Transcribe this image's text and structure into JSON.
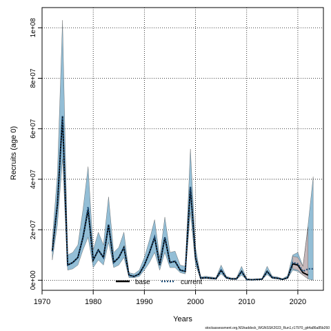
{
  "chart_data": {
    "type": "line",
    "xlabel": "Years",
    "ylabel": "Recruits (age 0)",
    "xlim": [
      1970,
      2025
    ],
    "ylim": [
      -4000000,
      108000000
    ],
    "x_ticks": [
      1970,
      1980,
      1990,
      2000,
      2010,
      2020
    ],
    "y_ticks": [
      0,
      20000000,
      40000000,
      60000000,
      80000000,
      100000000
    ],
    "x_tick_labels": [
      "1970",
      "1980",
      "1990",
      "2000",
      "2010",
      "2020"
    ],
    "y_tick_labels": [
      "0e+00",
      "2e+07",
      "4e+07",
      "6e+07",
      "8e+07",
      "1e+08"
    ],
    "grid": true,
    "legend_position": "bottom-center",
    "years": [
      1972,
      1973,
      1974,
      1975,
      1976,
      1977,
      1978,
      1979,
      1980,
      1981,
      1982,
      1983,
      1984,
      1985,
      1986,
      1987,
      1988,
      1989,
      1990,
      1991,
      1992,
      1993,
      1994,
      1995,
      1996,
      1997,
      1998,
      1999,
      2000,
      2001,
      2002,
      2003,
      2004,
      2005,
      2006,
      2007,
      2008,
      2009,
      2010,
      2011,
      2012,
      2013,
      2014,
      2015,
      2016,
      2017,
      2018,
      2019,
      2020,
      2021,
      2022,
      2023
    ],
    "series": [
      {
        "name": "base",
        "color": "#000000",
        "line_style": "solid",
        "x": [
          1972,
          1973,
          1974,
          1975,
          1976,
          1977,
          1978,
          1979,
          1980,
          1981,
          1982,
          1983,
          1984,
          1985,
          1986,
          1987,
          1988,
          1989,
          1990,
          1991,
          1992,
          1993,
          1994,
          1995,
          1996,
          1997,
          1998,
          1999,
          2000,
          2001,
          2002,
          2003,
          2004,
          2005,
          2006,
          2007,
          2008,
          2009,
          2010,
          2011,
          2012,
          2013,
          2014,
          2015,
          2016,
          2017,
          2018,
          2019,
          2020,
          2021,
          2022
        ],
        "y": [
          11500000,
          30000000,
          65000000,
          6000000,
          7000000,
          9000000,
          17000000,
          28000000,
          8000000,
          12000000,
          9000000,
          22000000,
          7000000,
          9000000,
          13000000,
          2000000,
          1500000,
          2500000,
          6000000,
          11000000,
          17000000,
          6000000,
          17000000,
          7000000,
          7500000,
          4000000,
          3500000,
          37000000,
          9000000,
          800000,
          1000000,
          800000,
          600000,
          4000000,
          1000000,
          500000,
          500000,
          3500000,
          300000,
          200000,
          300000,
          400000,
          3500000,
          1000000,
          800000,
          300000,
          1000000,
          6500000,
          6000000,
          3000000,
          2000000
        ]
      },
      {
        "name": "current",
        "color": "#1f4e79",
        "line_style": "dashed",
        "x": [
          1972,
          1973,
          1974,
          1975,
          1976,
          1977,
          1978,
          1979,
          1980,
          1981,
          1982,
          1983,
          1984,
          1985,
          1986,
          1987,
          1988,
          1989,
          1990,
          1991,
          1992,
          1993,
          1994,
          1995,
          1996,
          1997,
          1998,
          1999,
          2000,
          2001,
          2002,
          2003,
          2004,
          2005,
          2006,
          2007,
          2008,
          2009,
          2010,
          2011,
          2012,
          2013,
          2014,
          2015,
          2016,
          2017,
          2018,
          2019,
          2020,
          2021,
          2022,
          2023
        ],
        "y": [
          11500000,
          30000000,
          65000000,
          6000000,
          7000000,
          9000000,
          17000000,
          29000000,
          8000000,
          12000000,
          9000000,
          22000000,
          7000000,
          9000000,
          13000000,
          2000000,
          1500000,
          2500000,
          6000000,
          11000000,
          17000000,
          6000000,
          17000000,
          7000000,
          7500000,
          4000000,
          3500000,
          37000000,
          9000000,
          800000,
          1000000,
          800000,
          600000,
          4000000,
          1000000,
          500000,
          500000,
          3500000,
          300000,
          200000,
          300000,
          400000,
          3500000,
          1000000,
          800000,
          300000,
          1000000,
          7000000,
          6500000,
          3500000,
          4500000,
          4500000
        ]
      }
    ],
    "bands": [
      {
        "series": "current",
        "color": "#6fa8c8",
        "x": [
          1972,
          1973,
          1974,
          1975,
          1976,
          1977,
          1978,
          1979,
          1980,
          1981,
          1982,
          1983,
          1984,
          1985,
          1986,
          1987,
          1988,
          1989,
          1990,
          1991,
          1992,
          1993,
          1994,
          1995,
          1996,
          1997,
          1998,
          1999,
          2000,
          2001,
          2002,
          2003,
          2004,
          2005,
          2006,
          2007,
          2008,
          2009,
          2010,
          2011,
          2012,
          2013,
          2014,
          2015,
          2016,
          2017,
          2018,
          2019,
          2020,
          2021,
          2022,
          2023
        ],
        "lower": [
          8000000,
          22000000,
          48000000,
          4000000,
          4500000,
          6000000,
          12000000,
          17000000,
          5000000,
          8000000,
          6000000,
          15000000,
          5000000,
          6000000,
          9000000,
          1000000,
          1000000,
          1500000,
          4000000,
          7000000,
          11000000,
          4000000,
          11000000,
          5000000,
          5000000,
          3000000,
          2500000,
          27000000,
          6000000,
          500000,
          700000,
          500000,
          400000,
          2500000,
          700000,
          300000,
          300000,
          2000000,
          200000,
          100000,
          200000,
          300000,
          2200000,
          700000,
          500000,
          200000,
          600000,
          4000000,
          3500000,
          2000000,
          500000,
          0
        ],
        "upper": [
          16000000,
          42000000,
          103000000,
          10000000,
          11000000,
          14000000,
          28000000,
          45000000,
          12000000,
          19000000,
          14000000,
          33000000,
          11000000,
          13000000,
          19000000,
          3000000,
          2500000,
          4000000,
          9000000,
          16000000,
          24000000,
          9000000,
          25000000,
          11000000,
          11500000,
          6000000,
          5500000,
          52000000,
          13000000,
          1300000,
          1600000,
          1300000,
          1000000,
          6000000,
          1600000,
          900000,
          900000,
          5500000,
          600000,
          400000,
          500000,
          700000,
          5500000,
          1600000,
          1300000,
          600000,
          1800000,
          10000000,
          11000000,
          5500000,
          22000000,
          41000000
        ]
      },
      {
        "series": "base",
        "color": "#e8b4a8",
        "x": [
          2019,
          2020,
          2021,
          2022
        ],
        "lower": [
          4500000,
          4000000,
          2000000,
          500000
        ],
        "upper": [
          9500000,
          9000000,
          5500000,
          21000000
        ]
      }
    ]
  },
  "footer_note": "stockassessment.org,NShaddock_WGNSSK2023_Run1,r17970_git4a86a85b260"
}
